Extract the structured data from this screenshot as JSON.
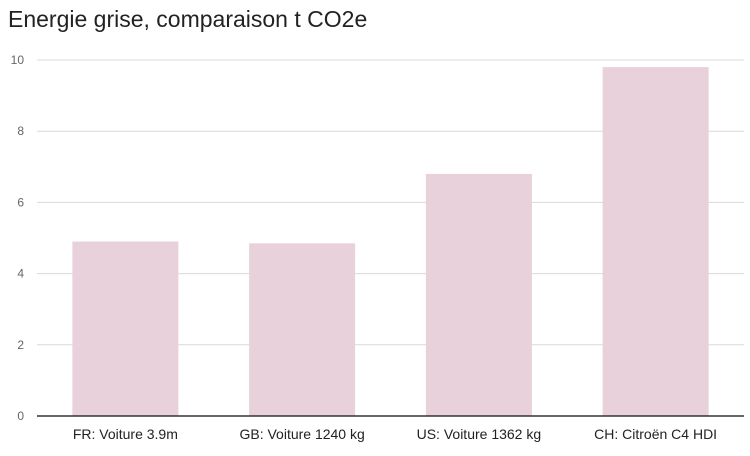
{
  "chart_data": {
    "type": "bar",
    "title": "Energie grise, comparaison t CO2e",
    "categories": [
      "FR: Voiture 3.9m",
      "GB: Voiture 1240 kg",
      "US: Voiture 1362 kg",
      "CH: Citroën C4 HDI"
    ],
    "values": [
      4.9,
      4.85,
      6.8,
      9.8
    ],
    "xlabel": "",
    "ylabel": "",
    "ylim": [
      0,
      10
    ],
    "yticks": [
      0,
      2,
      4,
      6,
      8,
      10
    ],
    "grid": true,
    "legend": "none",
    "colors": {
      "bar": "#e8d1da",
      "grid": "#d9d9d9",
      "axis": "#333333",
      "tick_text": "#666666",
      "category_text": "#222222",
      "title": "#222222"
    }
  }
}
